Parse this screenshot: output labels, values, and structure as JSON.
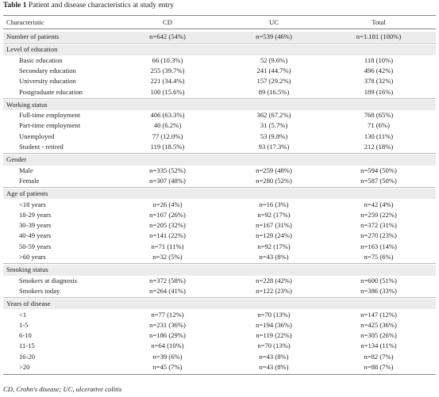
{
  "title": {
    "label": "Table 1",
    "text": "Patient and disease characteristics at study entry"
  },
  "table": {
    "header": [
      "Characteristic",
      "CD",
      "UC",
      "Total"
    ],
    "sections": [
      {
        "rows": [
          [
            "Number of patients",
            "n=642 (54%)",
            "n=539 (46%)",
            "n=1.181 (100%)"
          ]
        ]
      },
      {
        "heading": "Level of education",
        "rows": [
          [
            "Basic education",
            "66 (10.3%)",
            "52 (9.6%)",
            "118 (10%)"
          ],
          [
            "Secondary education",
            "255 (39.7%)",
            "241 (44.7%)",
            "496 (42%)"
          ],
          [
            "University education",
            "221 (34.4%)",
            "157 (29.2%)",
            "378 (32%)"
          ],
          [
            "Postgraduate education",
            "100 (15.6%)",
            "89 (16.5%)",
            "189 (16%)"
          ]
        ]
      },
      {
        "heading": "Working status",
        "rows": [
          [
            "Full-time employment",
            "406 (63.3%)",
            "362 (67.2%)",
            "768 (65%)"
          ],
          [
            "Part-time employment",
            "40 (6.2%)",
            "31 (5.7%)",
            "71 (6%)"
          ],
          [
            "Unemployed",
            "77 (12.0%)",
            "53 (9.8%)",
            "130 (11%)"
          ],
          [
            "Student - retired",
            "119 (18.5%)",
            "93 (17.3%)",
            "212 (18%)"
          ]
        ]
      },
      {
        "heading": "Gender",
        "rows": [
          [
            "Male",
            "n=335 (52%)",
            "n=259 (48%)",
            "n=594 (50%)"
          ],
          [
            "Female",
            "n=307 (48%)",
            "n=280 (52%)",
            "n=587 (50%)"
          ]
        ]
      },
      {
        "heading": "Age of patients",
        "rows": [
          [
            "<18 years",
            "n=26 (4%)",
            "n=16 (3%)",
            "n=42 (4%)"
          ],
          [
            "18-29 years",
            "n=167 (26%)",
            "n=92 (17%)",
            "n=259 (22%)"
          ],
          [
            "30-39 years",
            "n=205 (32%)",
            "n=167 (31%)",
            "n=372 (31%)"
          ],
          [
            "40-49 years",
            "n=141 (22%)",
            "n=129 (24%)",
            "n=270 (23%)"
          ],
          [
            "50-59 years",
            "n=71 (11%)",
            "n=92 (17%)",
            "n=163 (14%)"
          ],
          [
            ">60 years",
            "n=32 (5%)",
            "n=43 (8%)",
            "n=75 (6%)"
          ]
        ]
      },
      {
        "heading": "Smoking status",
        "rows": [
          [
            "Smokers at diagnosis",
            "n=372 (58%)",
            "n=228 (42%)",
            "n=600 (51%)"
          ],
          [
            "Smokers today",
            "n=264 (41%)",
            "n=122 (23%)",
            "n=386 (33%)"
          ]
        ]
      },
      {
        "heading": "Years of disease",
        "rows": [
          [
            "<1",
            "n=77 (12%)",
            "n=70 (13%)",
            "n=147 (12%)"
          ],
          [
            "1-5",
            "n=231 (36%)",
            "n=194 (36%)",
            "n=425 (36%)"
          ],
          [
            "6-10",
            "n=186 (29%)",
            "n=119 (22%)",
            "n=305 (26%)"
          ],
          [
            "11-15",
            "n=64 (10%)",
            "n=70 (13%)",
            "n=134 (11%)"
          ],
          [
            "16-20",
            "n=39 (6%)",
            "n=43 (8%)",
            "n=82 (7%)"
          ],
          [
            ">20",
            "n=45 (7%)",
            "n=43 (8%)",
            "n=88 (7%)"
          ]
        ]
      }
    ]
  },
  "footnote": "CD, Crohn's disease; UC, ulcerative colitis"
}
